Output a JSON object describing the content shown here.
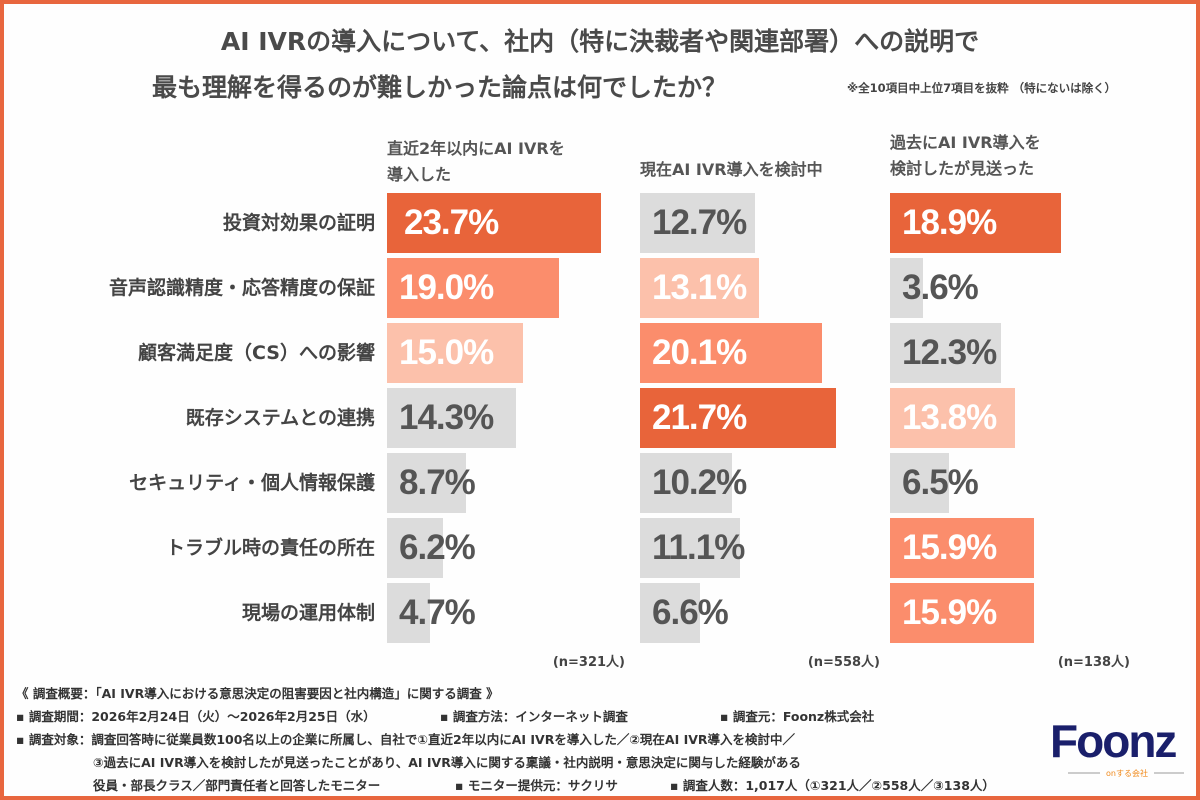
{
  "title_line1": "AI IVRの導入について、社内（特に決裁者や関連部署）への説明で",
  "title_line2": "最も理解を得るのが難しかった論点は何でしたか？",
  "note": "※全10項目中上位7項目を抜粋 （特にないは除く）",
  "chart_data": {
    "type": "bar",
    "orientation": "horizontal",
    "categories": [
      "投資対効果の証明",
      "音声認識精度・応答精度の保証",
      "顧客満足度（CS）への影響",
      "既存システムとの連携",
      "セキュリティ・個人情報保護",
      "トラブル時の責任の所在",
      "現場の運用体制"
    ],
    "series": [
      {
        "name_lines": [
          "直近2年以内にAI IVRを",
          "導入した"
        ],
        "values": [
          23.7,
          19.0,
          15.0,
          14.3,
          8.7,
          6.2,
          4.7
        ],
        "labels": [
          "23.7%",
          "19.0%",
          "15.0%",
          "14.3%",
          "8.7%",
          "6.2%",
          "4.7%"
        ],
        "n": "(n=321人)"
      },
      {
        "name_lines": [
          "現在AI IVR導入を検討中"
        ],
        "values": [
          12.7,
          13.1,
          20.1,
          21.7,
          10.2,
          11.1,
          6.6
        ],
        "labels": [
          "12.7%",
          "13.1%",
          "20.1%",
          "21.7%",
          "10.2%",
          "11.1%",
          "6.6%"
        ],
        "n": "(n=558人)"
      },
      {
        "name_lines": [
          "過去にAI IVR導入を",
          "検討したが見送った"
        ],
        "values": [
          18.9,
          3.6,
          12.3,
          13.8,
          6.5,
          15.9,
          15.9
        ],
        "labels": [
          "18.9%",
          "3.6%",
          "12.3%",
          "13.8%",
          "6.5%",
          "15.9%",
          "15.9%"
        ],
        "n": "(n=138人)"
      }
    ],
    "unit": "%",
    "colors": {
      "rank1": "#e8643a",
      "rank2": "#fb8d6c",
      "rank3": "#fcc1ab",
      "other": "#dcdcdc",
      "label_on_color": "#ffffff",
      "label_on_gray": "#555555"
    }
  },
  "footer": {
    "overview": "《 調査概要：「AI IVR導入における意思決定の阻害要因と社内構造」に関する調査 》",
    "period": "▪ 調査期間：2026年2月24日（火）〜2026年2月25日（水）",
    "method": "▪ 調査方法：インターネット調査",
    "source": "▪ 調査元：Foonz株式会社",
    "target1": "▪ 調査対象：調査回答時に従業員数100名以上の企業に所属し、自社で①直近2年以内にAI IVRを導入した／②現在AI IVR導入を検討中／",
    "target2": "③過去にAI IVR導入を検討したが見送ったことがあり、AI IVR導入に関する稟議・社内説明・意思決定に関与した経験がある",
    "target3": "役員・部長クラス／部門責任者と回答したモニター",
    "provider": "▪ モニター提供元：サクリサ",
    "count": "▪ 調査人数：1,017人（①321人／②558人／③138人）"
  },
  "logo": {
    "text": "Foonz",
    "tagline": "onする会社",
    "color": "#1a1f6b",
    "accent": "#f08a1c"
  }
}
